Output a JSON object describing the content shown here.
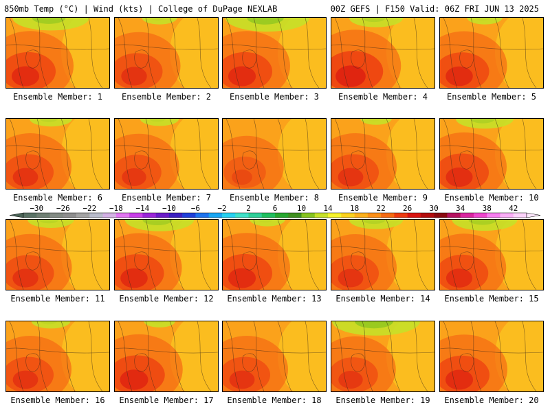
{
  "header": {
    "left": "850mb Temp (°C) | Wind (kts) | College of DuPage NEXLAB",
    "right": "00Z GEFS | F150 Valid: 06Z FRI JUN 13 2025"
  },
  "members": [
    {
      "label": "Ensemble Member: 1",
      "heat": 0.72,
      "cool_north": 0.65
    },
    {
      "label": "Ensemble Member: 2",
      "heat": 0.62,
      "cool_north": 0.1
    },
    {
      "label": "Ensemble Member: 3",
      "heat": 0.72,
      "cool_north": 0.75
    },
    {
      "label": "Ensemble Member: 4",
      "heat": 0.85,
      "cool_north": 0.35
    },
    {
      "label": "Ensemble Member: 5",
      "heat": 0.7,
      "cool_north": 0.1
    },
    {
      "label": "Ensemble Member: 6",
      "heat": 0.6,
      "cool_north": 0.2
    },
    {
      "label": "Ensemble Member: 7",
      "heat": 0.55,
      "cool_north": 0.15
    },
    {
      "label": "Ensemble Member: 8",
      "heat": 0.35,
      "cool_north": 0.0
    },
    {
      "label": "Ensemble Member: 9",
      "heat": 0.6,
      "cool_north": 0.05
    },
    {
      "label": "Ensemble Member: 10",
      "heat": 0.68,
      "cool_north": 0.4
    },
    {
      "label": "Ensemble Member: 11",
      "heat": 0.62,
      "cool_north": 0.25
    },
    {
      "label": "Ensemble Member: 12",
      "heat": 0.7,
      "cool_north": 0.55
    },
    {
      "label": "Ensemble Member: 13",
      "heat": 0.72,
      "cool_north": 0.1
    },
    {
      "label": "Ensemble Member: 14",
      "heat": 0.6,
      "cool_north": 0.35
    },
    {
      "label": "Ensemble Member: 15",
      "heat": 0.65,
      "cool_north": 0.5
    },
    {
      "label": "Ensemble Member: 16",
      "heat": 0.6,
      "cool_north": 0.15
    },
    {
      "label": "Ensemble Member: 17",
      "heat": 0.75,
      "cool_north": 0.05
    },
    {
      "label": "Ensemble Member: 18",
      "heat": 0.6,
      "cool_north": 0.0
    },
    {
      "label": "Ensemble Member: 19",
      "heat": 0.55,
      "cool_north": 0.8
    },
    {
      "label": "Ensemble Member: 20",
      "heat": 0.72,
      "cool_north": 0.0
    }
  ],
  "colorbar": {
    "labels": [
      "−30",
      "−26",
      "−22",
      "−18",
      "−14",
      "−10",
      "−6",
      "−2",
      "2",
      "6",
      "10",
      "14",
      "18",
      "22",
      "26",
      "30",
      "34",
      "38",
      "42"
    ],
    "colors": [
      "#5a7265",
      "#6f7f73",
      "#838b84",
      "#8e8e8e",
      "#a3a3a3",
      "#b9bccb",
      "#d3b1e4",
      "#e075f0",
      "#c83fe8",
      "#9a25d8",
      "#6a1cc8",
      "#3a1fc0",
      "#1f3fd8",
      "#1f74ee",
      "#1aa6f2",
      "#27d0f0",
      "#3fe0c8",
      "#2fcf98",
      "#1fbf5f",
      "#27a72f",
      "#3f8f1f",
      "#86c31f",
      "#c6e028",
      "#f6f32c",
      "#fbd21f",
      "#fcb01c",
      "#fb8f17",
      "#f56a12",
      "#ec3a10",
      "#d81410",
      "#b30d0d",
      "#8a0a10",
      "#b5125f",
      "#d925a0",
      "#ee45cd",
      "#f77df0",
      "#fbaef7",
      "#fdd3fb"
    ]
  }
}
